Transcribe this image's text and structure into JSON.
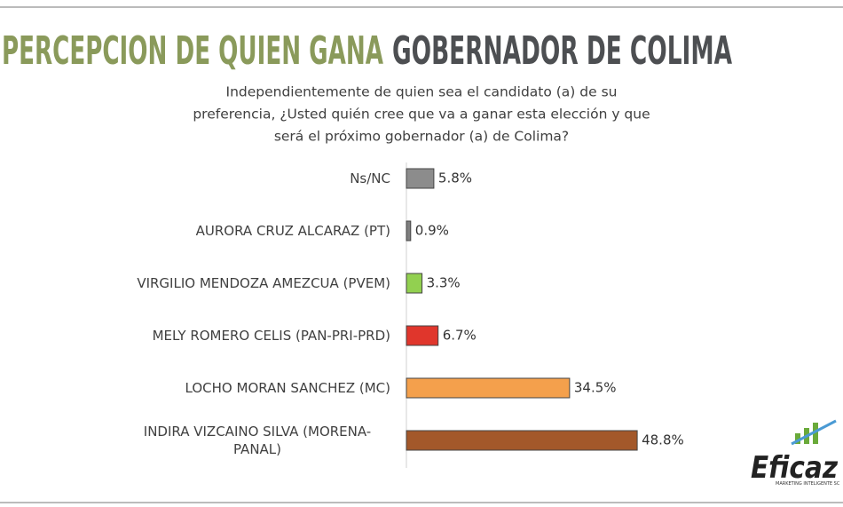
{
  "chart_data": {
    "type": "bar",
    "orientation": "horizontal",
    "title": [
      "PERCEPCION DE QUIEN GANA",
      "GOBERNADOR DE COLIMA"
    ],
    "title_colors": [
      "#8a9a5b",
      "#4d4f52"
    ],
    "subtitle": [
      "Independientemente de quien sea el candidato (a) de su",
      "preferencia, ¿Usted quién cree que va a ganar esta elección y que",
      "será el próximo gobernador (a) de Colima?"
    ],
    "categories": [
      "Ns/NC",
      "AURORA CRUZ ALCARAZ (PT)",
      "VIRGILIO MENDOZA AMEZCUA (PVEM)",
      "MELY ROMERO CELIS (PAN-PRI-PRD)",
      "LOCHO MORAN SANCHEZ (MC)",
      "INDIRA  VIZCAINO SILVA (MORENA-PANAL)"
    ],
    "values": [
      5.8,
      0.9,
      3.3,
      6.7,
      34.5,
      48.8
    ],
    "value_labels": [
      "5.8%",
      "0.9%",
      "3.3%",
      "6.7%",
      "34.5%",
      "48.8%"
    ],
    "colors": [
      "#8c8c8c",
      "#7f7f7f",
      "#92d050",
      "#e0362c",
      "#f4a04c",
      "#a3582a"
    ]
  },
  "logo": {
    "name": "Eficaz",
    "tagline": "MARKETING INTELIGENTE SC"
  }
}
